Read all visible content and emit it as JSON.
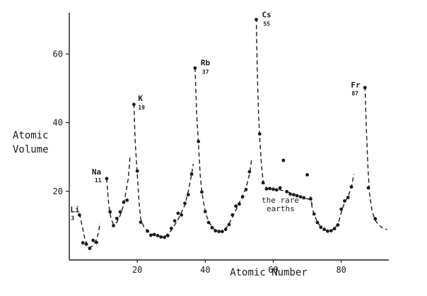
{
  "chart_data": {
    "type": "scatter",
    "title": "",
    "xlabel": "Atomic Number",
    "ylabel": [
      "Atomic",
      "Volume"
    ],
    "xlim": [
      0,
      94
    ],
    "ylim": [
      0,
      72
    ],
    "xticks": [
      "20",
      "40",
      "60",
      "80"
    ],
    "yticks": [
      "20",
      "40",
      "60"
    ],
    "grid": false,
    "colors": {
      "ink": "#1a1a1a",
      "background": "#ffffff"
    },
    "series": [
      {
        "values": [
          [
            3,
            13.1
          ],
          [
            4,
            5.0
          ],
          [
            5,
            4.6
          ],
          [
            6,
            3.4
          ],
          [
            7,
            5.7
          ],
          [
            8,
            5.1
          ],
          [
            11,
            23.7
          ],
          [
            12,
            14.0
          ],
          [
            13,
            10.0
          ],
          [
            14,
            12.1
          ],
          [
            15,
            14.0
          ],
          [
            16,
            16.8
          ],
          [
            17,
            17.4
          ],
          [
            19,
            45.3
          ],
          [
            20,
            25.9
          ],
          [
            21,
            11.0
          ],
          [
            23,
            8.4
          ],
          [
            24,
            7.2
          ],
          [
            25,
            7.4
          ],
          [
            26,
            7.1
          ],
          [
            27,
            6.7
          ],
          [
            28,
            6.6
          ],
          [
            29,
            7.1
          ],
          [
            30,
            9.2
          ],
          [
            31,
            11.4
          ],
          [
            32,
            13.6
          ],
          [
            33,
            13.1
          ],
          [
            34,
            16.5
          ],
          [
            35,
            19.0
          ],
          [
            36,
            25.0
          ],
          [
            37,
            55.9
          ],
          [
            38,
            34.5
          ],
          [
            39,
            19.8
          ],
          [
            40,
            14.1
          ],
          [
            41,
            10.9
          ],
          [
            42,
            9.4
          ],
          [
            43,
            8.5
          ],
          [
            44,
            8.3
          ],
          [
            45,
            8.3
          ],
          [
            46,
            8.9
          ],
          [
            47,
            10.3
          ],
          [
            48,
            13.1
          ],
          [
            49,
            15.7
          ],
          [
            50,
            16.3
          ],
          [
            51,
            18.4
          ],
          [
            52,
            20.5
          ],
          [
            53,
            25.7
          ],
          [
            55,
            70.0
          ],
          [
            56,
            36.7
          ],
          [
            57,
            22.5
          ],
          [
            58,
            20.7
          ],
          [
            59,
            20.8
          ],
          [
            60,
            20.6
          ],
          [
            61,
            20.4
          ],
          [
            62,
            21.0
          ],
          [
            63,
            29.0
          ],
          [
            64,
            19.9
          ],
          [
            65,
            19.2
          ],
          [
            66,
            19.0
          ],
          [
            67,
            18.7
          ],
          [
            68,
            18.4
          ],
          [
            69,
            18.1
          ],
          [
            70,
            24.8
          ],
          [
            71,
            17.8
          ],
          [
            72,
            13.4
          ],
          [
            73,
            10.9
          ],
          [
            74,
            9.5
          ],
          [
            75,
            8.9
          ],
          [
            76,
            8.4
          ],
          [
            77,
            8.5
          ],
          [
            78,
            9.1
          ],
          [
            79,
            10.2
          ],
          [
            80,
            14.8
          ],
          [
            81,
            17.2
          ],
          [
            82,
            18.2
          ],
          [
            83,
            21.3
          ],
          [
            87,
            50.2
          ],
          [
            88,
            21.0
          ],
          [
            90,
            12.0
          ]
        ]
      }
    ],
    "curves": [
      [
        [
          3,
          13.5
        ],
        [
          4,
          9
        ],
        [
          4.6,
          6
        ],
        [
          5.5,
          4.2
        ],
        [
          6,
          3.6
        ],
        [
          7,
          4.2
        ],
        [
          8,
          6
        ],
        [
          8.6,
          8
        ],
        [
          9,
          10.8
        ]
      ],
      [
        [
          11,
          23.7
        ],
        [
          11.6,
          16
        ],
        [
          12.3,
          12
        ],
        [
          13,
          10.3
        ],
        [
          14,
          11
        ],
        [
          15,
          13
        ],
        [
          16,
          16
        ],
        [
          16.7,
          20
        ],
        [
          17.4,
          24
        ],
        [
          17.9,
          30.5
        ]
      ],
      [
        [
          19,
          45.5
        ],
        [
          19.4,
          34
        ],
        [
          20,
          25
        ],
        [
          20.5,
          17
        ],
        [
          21,
          12
        ],
        [
          22,
          9.5
        ],
        [
          24,
          7.6
        ],
        [
          26,
          7.0
        ],
        [
          28,
          6.7
        ],
        [
          30,
          8.6
        ],
        [
          32,
          11.8
        ],
        [
          34,
          16
        ],
        [
          35,
          20
        ],
        [
          36,
          25
        ],
        [
          36.5,
          28
        ]
      ],
      [
        [
          37,
          56
        ],
        [
          37.5,
          42
        ],
        [
          38,
          34
        ],
        [
          38.5,
          25
        ],
        [
          39,
          19.8
        ],
        [
          40,
          14
        ],
        [
          41,
          11.2
        ],
        [
          42,
          9.6
        ],
        [
          43,
          8.6
        ],
        [
          44,
          8.3
        ],
        [
          45,
          8.3
        ],
        [
          46,
          8.9
        ],
        [
          48,
          12.4
        ],
        [
          50,
          16.6
        ],
        [
          52,
          20.9
        ],
        [
          53,
          25
        ],
        [
          53.6,
          29
        ]
      ],
      [
        [
          55,
          70.5
        ],
        [
          55.3,
          55
        ],
        [
          55.7,
          42
        ],
        [
          56,
          36
        ],
        [
          56.5,
          28
        ],
        [
          57,
          23
        ],
        [
          58,
          21
        ],
        [
          60,
          20.6
        ],
        [
          62,
          20.4
        ],
        [
          64,
          19.9
        ],
        [
          66,
          19.2
        ],
        [
          68,
          18.3
        ],
        [
          70,
          17.8
        ],
        [
          71,
          17.6
        ],
        [
          71.5,
          16
        ]
      ],
      [
        [
          71,
          18.5
        ],
        [
          71.4,
          15.5
        ],
        [
          72,
          13.3
        ],
        [
          73,
          11
        ],
        [
          74,
          9.6
        ],
        [
          75,
          8.9
        ],
        [
          76,
          8.4
        ],
        [
          77,
          8.5
        ],
        [
          78,
          9.2
        ],
        [
          79,
          10.3
        ],
        [
          80,
          13.8
        ],
        [
          81,
          16.8
        ],
        [
          82,
          18.4
        ],
        [
          83,
          21.2
        ],
        [
          83.7,
          25
        ]
      ],
      [
        [
          87,
          50.5
        ],
        [
          87.4,
          38
        ],
        [
          87.8,
          28
        ],
        [
          88.3,
          19.5
        ],
        [
          89,
          14.5
        ],
        [
          90,
          11.5
        ],
        [
          91,
          10.2
        ],
        [
          92,
          9.4
        ],
        [
          93.5,
          8.8
        ]
      ]
    ],
    "element_labels": [
      {
        "symbol": "Li",
        "number": "3",
        "x": 3,
        "y": 13.1
      },
      {
        "symbol": "Na",
        "number": "11",
        "x": 11,
        "y": 23.7
      },
      {
        "symbol": "K",
        "number": "19",
        "x": 19,
        "y": 45.3
      },
      {
        "symbol": "Rb",
        "number": "37",
        "x": 37,
        "y": 55.9
      },
      {
        "symbol": "Cs",
        "number": "55",
        "x": 55,
        "y": 70.0
      },
      {
        "symbol": "Fr",
        "number": "87",
        "x": 87,
        "y": 50.2
      }
    ],
    "annotations": [
      "the rare",
      "earths"
    ]
  }
}
